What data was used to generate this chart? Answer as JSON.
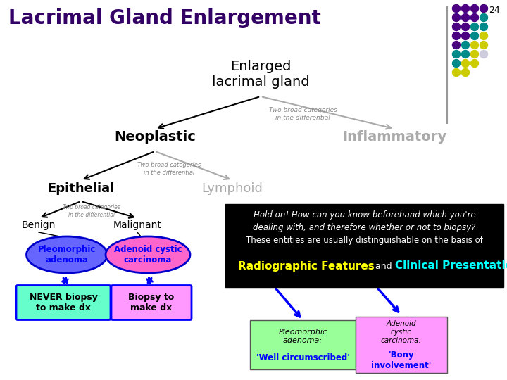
{
  "title": "Lacrimal Gland Enlargement",
  "slide_num": "24",
  "bg_color": "#ffffff",
  "title_color": "#330066",
  "root_node": "Enlarged\nlacrimal gland",
  "dot_color_grid": [
    [
      "#4b0082",
      "#4b0082",
      "#4b0082",
      "#4b0082"
    ],
    [
      "#4b0082",
      "#4b0082",
      "#4b0082",
      "#008b8b"
    ],
    [
      "#4b0082",
      "#4b0082",
      "#008b8b",
      "#008b8b"
    ],
    [
      "#4b0082",
      "#4b0082",
      "#008b8b",
      "#cccc00"
    ],
    [
      "#4b0082",
      "#008b8b",
      "#cccc00",
      "#cccc00"
    ],
    [
      "#008b8b",
      "#008b8b",
      "#cccc00",
      "#ccccdd"
    ],
    [
      "#008b8b",
      "#cccc00",
      "#cccc00",
      "#ccccdd"
    ],
    [
      "#cccc00",
      "#cccc00",
      "#ccccdd",
      "#ccccdd"
    ]
  ],
  "dot_count_per_row": [
    4,
    4,
    4,
    4,
    4,
    4,
    3,
    2
  ],
  "info_box_text_line1": "Hold on! How can you know beforehand which you're",
  "info_box_text_line2": "dealing with, and therefore whether or not to biopsy?",
  "info_box_text_line3": "These entities are usually distinguishable on the basis of",
  "info_highlight1": "Radiographic Features",
  "info_highlight2": "Clinical Presentation",
  "info_connector": " and ",
  "highlight_color1": "#ffff00",
  "highlight_color2": "#00ffff",
  "white": "#ffffff",
  "black": "#000000",
  "blue": "#0000ff",
  "gray": "#aaaaaa",
  "darkgray": "#888888",
  "pleo_fill": "#6666ff",
  "pleo_border": "#0000cc",
  "adeno_fill": "#ff66cc",
  "adeno_border": "#0000cc",
  "never_fill": "#66ffcc",
  "never_border": "#0000ff",
  "biopsy_fill": "#ff99ff",
  "biopsy_border": "#0000ff",
  "pleo_feat_fill": "#99ff99",
  "adeno_feat_fill": "#ff99ff"
}
